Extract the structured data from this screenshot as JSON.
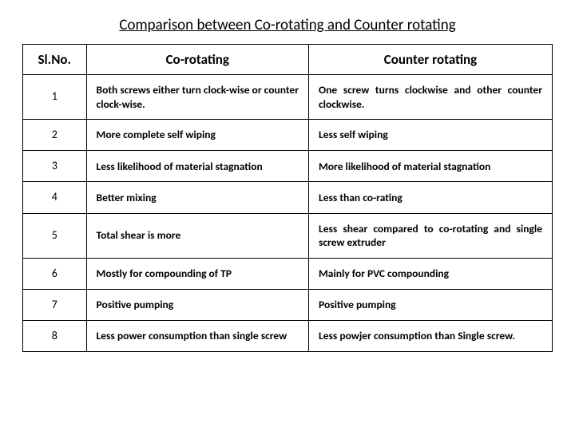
{
  "title": "Comparison between Co-rotating and Counter rotating",
  "columns": {
    "sl": "Sl.No.",
    "co": "Co-rotating",
    "cr": "Counter rotating"
  },
  "rows": [
    {
      "sl": "1",
      "co": "Both screws either turn clock-wise or counter clock-wise.",
      "cr": "One screw turns clockwise and other counter clockwise."
    },
    {
      "sl": "2",
      "co": "More complete self wiping",
      "cr": "Less self wiping"
    },
    {
      "sl": "3",
      "co": "Less likelihood of material stagnation",
      "cr": "More likelihood of material stagnation"
    },
    {
      "sl": "4",
      "co": "Better mixing",
      "cr": "Less than co-rating"
    },
    {
      "sl": "5",
      "co": "Total shear is more",
      "cr": "Less shear compared to co-rotating and single screw extruder"
    },
    {
      "sl": "6",
      "co": "Mostly for compounding of TP",
      "cr": "Mainly for PVC compounding"
    },
    {
      "sl": "7",
      "co": "Positive pumping",
      "cr": "Positive pumping"
    },
    {
      "sl": "8",
      "co": "Less power consumption than single screw",
      "cr": "Less powjer consumption than Single screw."
    }
  ]
}
